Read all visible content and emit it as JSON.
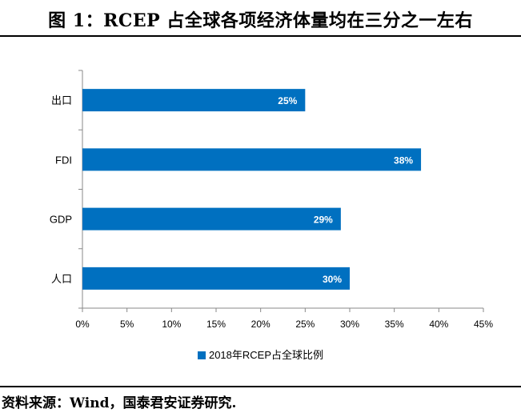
{
  "figure": {
    "title": "图 1：RCEP 占全球各项经济体量均在三分之一左右",
    "source": "资料来源：Wind，国泰君安证券研究."
  },
  "chart_data": {
    "type": "bar",
    "orientation": "horizontal",
    "categories": [
      "出口",
      "FDI",
      "GDP",
      "人口"
    ],
    "series": [
      {
        "name": "2018年RCEP占全球比例",
        "values": [
          25,
          38,
          29,
          30
        ],
        "labels": [
          "25%",
          "38%",
          "29%",
          "30%"
        ],
        "color": "#0070c0"
      }
    ],
    "xlim": [
      0,
      45
    ],
    "xticks": [
      0,
      5,
      10,
      15,
      20,
      25,
      30,
      35,
      40,
      45
    ],
    "xtick_labels": [
      "0%",
      "5%",
      "10%",
      "15%",
      "20%",
      "25%",
      "30%",
      "35%",
      "40%",
      "45%"
    ],
    "grid": false,
    "legend_position": "bottom"
  }
}
